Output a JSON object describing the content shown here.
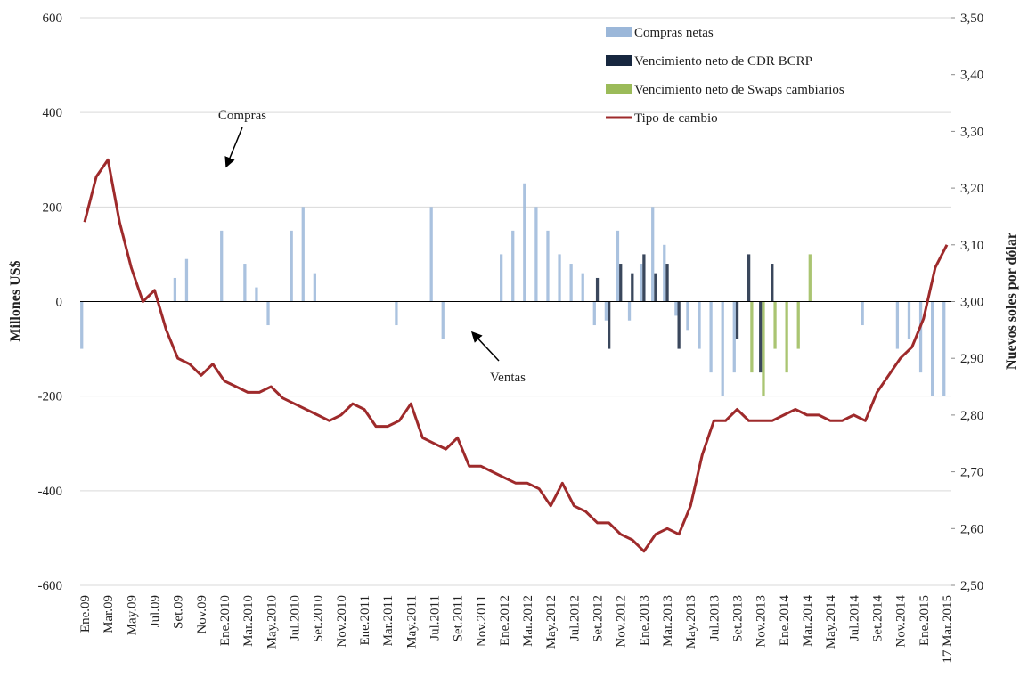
{
  "chart_data": {
    "type": "bar",
    "y_label": "Millones  US$",
    "y2_label": "Nuevos soles por dólar",
    "annotations": [
      "Compras",
      "Ventas"
    ],
    "categories": [
      "Ene.09",
      null,
      "Mar.09",
      null,
      "May.09",
      null,
      "Jul.09",
      null,
      "Set.09",
      null,
      "Nov.09",
      null,
      "Ene.2010",
      null,
      "Mar.2010",
      null,
      "May.2010",
      null,
      "Jul.2010",
      null,
      "Set.2010",
      null,
      "Nov.2010",
      null,
      "Ene.2011",
      null,
      "Mar.2011",
      null,
      "May.2011",
      null,
      "Jul.2011",
      null,
      "Set.2011",
      null,
      "Nov.2011",
      null,
      "Ene.2012",
      null,
      "Mar.2012",
      null,
      "May.2012",
      null,
      "Jul.2012",
      null,
      "Set.2012",
      null,
      "Nov.2012",
      null,
      "Ene.2013",
      null,
      "Mar.2013",
      null,
      "May.2013",
      null,
      "Jul.2013",
      null,
      "Set.2013",
      null,
      "Nov.2013",
      null,
      "Ene.2014",
      null,
      "Mar.2014",
      null,
      "May.2014",
      null,
      "Jul.2014",
      null,
      "Set.2014",
      null,
      "Nov.2014",
      null,
      "Ene.2015",
      null,
      "17 Mar.2015"
    ],
    "series": [
      {
        "name": "Compras netas",
        "type": "bar",
        "color": "#9bb7d9",
        "values": [
          -100,
          0,
          0,
          0,
          0,
          0,
          0,
          0,
          50,
          90,
          0,
          0,
          150,
          0,
          80,
          30,
          -50,
          0,
          150,
          200,
          60,
          0,
          0,
          0,
          0,
          0,
          0,
          -50,
          0,
          0,
          200,
          -80,
          0,
          0,
          0,
          0,
          100,
          150,
          250,
          200,
          150,
          100,
          80,
          60,
          -50,
          -40,
          150,
          -40,
          80,
          200,
          120,
          -30,
          -60,
          -100,
          -150,
          -200,
          -150,
          0,
          0,
          0,
          0,
          0,
          0,
          0,
          0,
          0,
          0,
          -50,
          0,
          0,
          -100,
          -80,
          -150,
          -200,
          -200
        ]
      },
      {
        "name": "Vencimiento neto de CDR BCRP",
        "type": "bar",
        "color": "#17273f",
        "values": [
          0,
          0,
          0,
          0,
          0,
          0,
          0,
          0,
          0,
          0,
          0,
          0,
          0,
          0,
          0,
          0,
          0,
          0,
          0,
          0,
          0,
          0,
          0,
          0,
          0,
          0,
          0,
          0,
          0,
          0,
          0,
          0,
          0,
          0,
          0,
          0,
          0,
          0,
          0,
          0,
          0,
          0,
          0,
          0,
          50,
          -100,
          80,
          60,
          100,
          60,
          80,
          -100,
          0,
          0,
          0,
          0,
          -80,
          100,
          -150,
          80,
          0,
          0,
          0,
          0,
          0,
          0,
          0,
          0,
          0,
          0,
          0,
          0,
          0,
          0,
          0
        ]
      },
      {
        "name": "Vencimiento neto de Swaps cambiarios",
        "type": "bar",
        "color": "#9bbb59",
        "values": [
          0,
          0,
          0,
          0,
          0,
          0,
          0,
          0,
          0,
          0,
          0,
          0,
          0,
          0,
          0,
          0,
          0,
          0,
          0,
          0,
          0,
          0,
          0,
          0,
          0,
          0,
          0,
          0,
          0,
          0,
          0,
          0,
          0,
          0,
          0,
          0,
          0,
          0,
          0,
          0,
          0,
          0,
          0,
          0,
          0,
          0,
          0,
          0,
          0,
          0,
          0,
          0,
          0,
          0,
          0,
          0,
          0,
          -150,
          -200,
          -100,
          -150,
          -100,
          100,
          0,
          0,
          0,
          0,
          0,
          0,
          0,
          0,
          0,
          0,
          0,
          0
        ]
      },
      {
        "name": "Tipo de cambio",
        "type": "line",
        "axis": "y2",
        "color": "#9e2a2b",
        "values": [
          3.14,
          3.22,
          3.25,
          3.14,
          3.06,
          3.0,
          3.02,
          2.95,
          2.9,
          2.89,
          2.87,
          2.89,
          2.86,
          2.85,
          2.84,
          2.84,
          2.85,
          2.83,
          2.82,
          2.81,
          2.8,
          2.79,
          2.8,
          2.82,
          2.81,
          2.78,
          2.78,
          2.79,
          2.82,
          2.76,
          2.75,
          2.74,
          2.76,
          2.71,
          2.71,
          2.7,
          2.69,
          2.68,
          2.68,
          2.67,
          2.64,
          2.68,
          2.64,
          2.63,
          2.61,
          2.61,
          2.59,
          2.58,
          2.56,
          2.59,
          2.6,
          2.59,
          2.64,
          2.73,
          2.79,
          2.79,
          2.81,
          2.79,
          2.79,
          2.79,
          2.8,
          2.81,
          2.8,
          2.8,
          2.79,
          2.79,
          2.8,
          2.79,
          2.84,
          2.87,
          2.9,
          2.92,
          2.97,
          3.06,
          3.1
        ]
      }
    ],
    "ylim": [
      -600,
      600
    ],
    "yticks": [
      -600,
      -400,
      -200,
      0,
      200,
      400,
      600
    ],
    "y2lim": [
      2.5,
      3.5
    ],
    "y2ticks": [
      {
        "value": 2.5,
        "label": "2,50"
      },
      {
        "value": 2.6,
        "label": "2,60"
      },
      {
        "value": 2.7,
        "label": "2,70"
      },
      {
        "value": 2.8,
        "label": "2,80"
      },
      {
        "value": 2.9,
        "label": "2,90"
      },
      {
        "value": 3.0,
        "label": "3,00"
      },
      {
        "value": 3.1,
        "label": "3,10"
      },
      {
        "value": 3.2,
        "label": "3,20"
      },
      {
        "value": 3.3,
        "label": "3,30"
      },
      {
        "value": 3.4,
        "label": "3,40"
      },
      {
        "value": 3.5,
        "label": "3,50"
      }
    ],
    "grid": true,
    "legend": "top-right"
  }
}
